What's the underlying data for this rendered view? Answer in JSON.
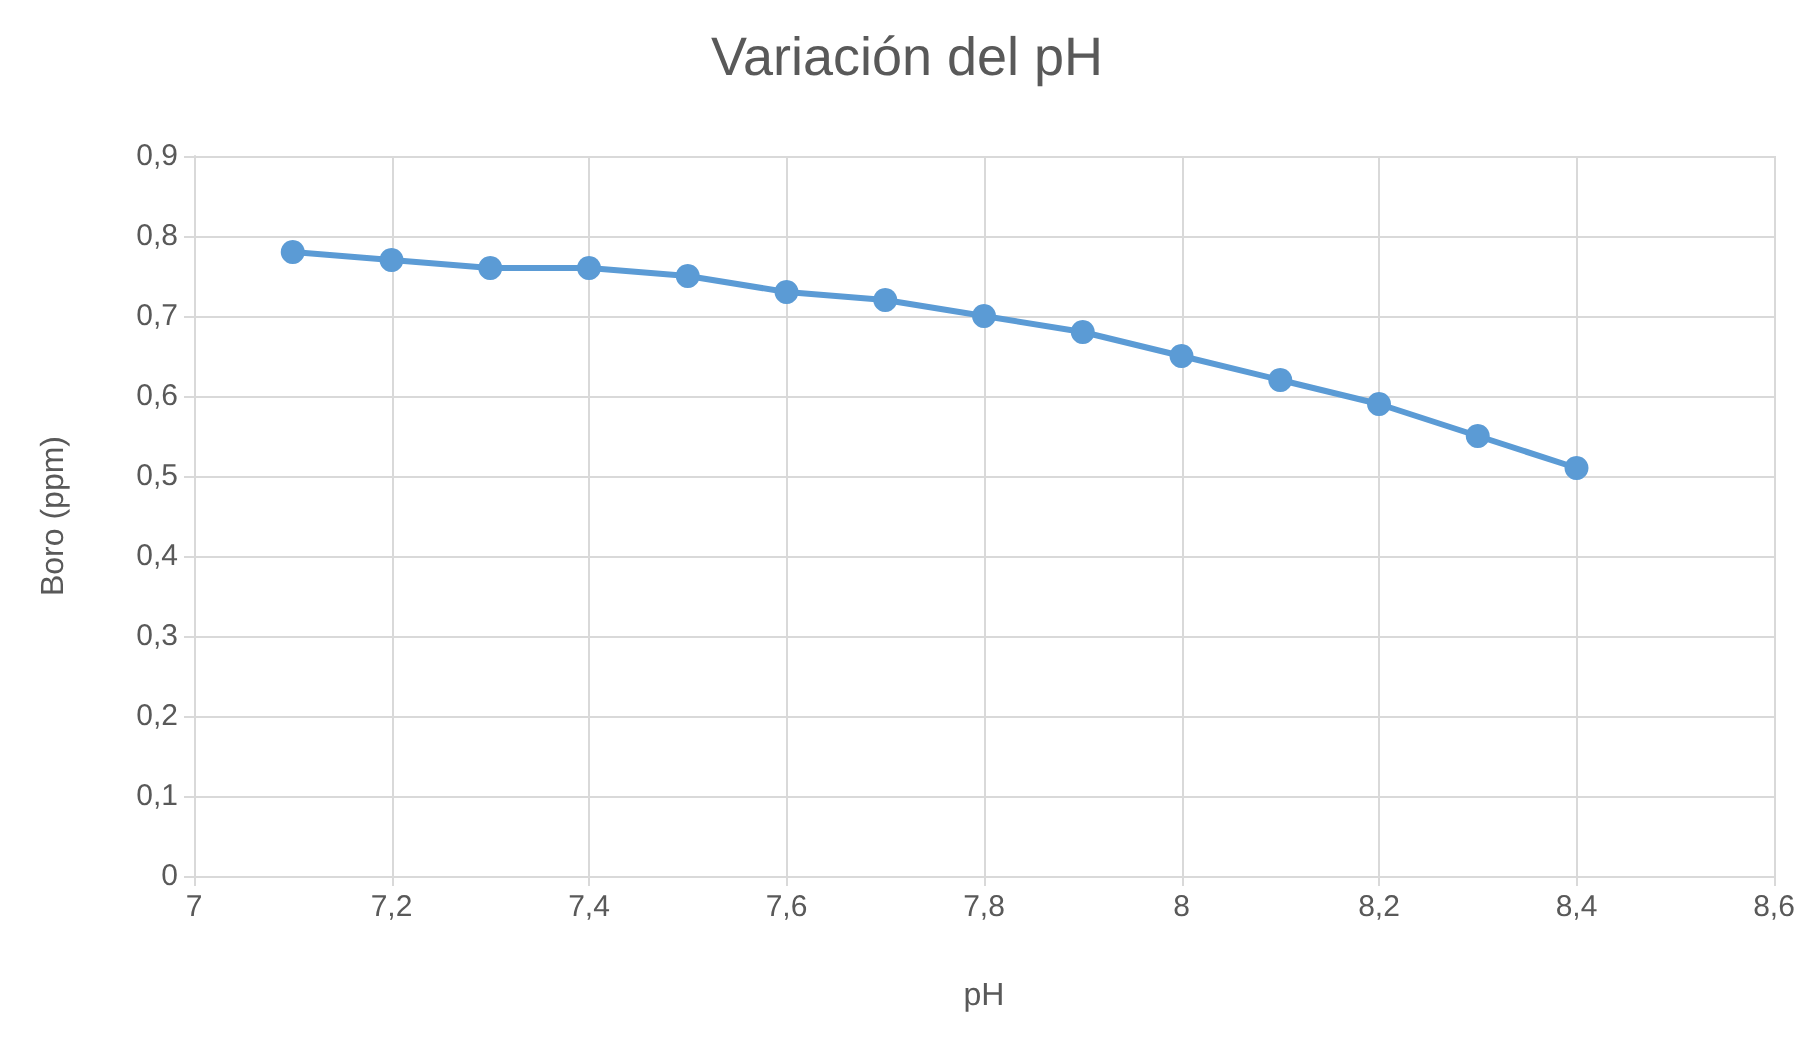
{
  "chart_data": {
    "type": "line",
    "title": "Variación del pH",
    "xlabel": "pH",
    "ylabel": "Boro (ppm)",
    "x": [
      7.1,
      7.2,
      7.3,
      7.4,
      7.5,
      7.6,
      7.7,
      7.8,
      7.9,
      8.0,
      8.1,
      8.2,
      8.3,
      8.4
    ],
    "series": [
      {
        "color": "#5b9bd5",
        "values": [
          0.78,
          0.77,
          0.76,
          0.76,
          0.75,
          0.73,
          0.72,
          0.7,
          0.68,
          0.65,
          0.62,
          0.59,
          0.55,
          0.51
        ]
      }
    ],
    "xlim": [
      7,
      8.6
    ],
    "xticks": [
      7,
      {
        "value": 7.2,
        "label": "7,2"
      },
      {
        "value": 7.4,
        "label": "7,4"
      },
      {
        "value": 7.6,
        "label": "7,6"
      },
      {
        "value": 7.8,
        "label": "7,8"
      },
      8,
      {
        "value": 8.2,
        "label": "8,2"
      },
      {
        "value": 8.4,
        "label": "8,4"
      },
      {
        "value": 8.6,
        "label": "8,6"
      }
    ],
    "ylim": [
      0,
      0.9
    ],
    "yticks": [
      0,
      {
        "value": 0.1,
        "label": "0,1"
      },
      {
        "value": 0.2,
        "label": "0,2"
      },
      {
        "value": 0.3,
        "label": "0,3"
      },
      {
        "value": 0.4,
        "label": "0,4"
      },
      {
        "value": 0.5,
        "label": "0,5"
      },
      {
        "value": 0.6,
        "label": "0,6"
      },
      {
        "value": 0.7,
        "label": "0,7"
      },
      {
        "value": 0.8,
        "label": "0,8"
      },
      {
        "value": 0.9,
        "label": "0,9"
      }
    ],
    "grid": true,
    "marker": "circle",
    "line_style": "solid"
  }
}
